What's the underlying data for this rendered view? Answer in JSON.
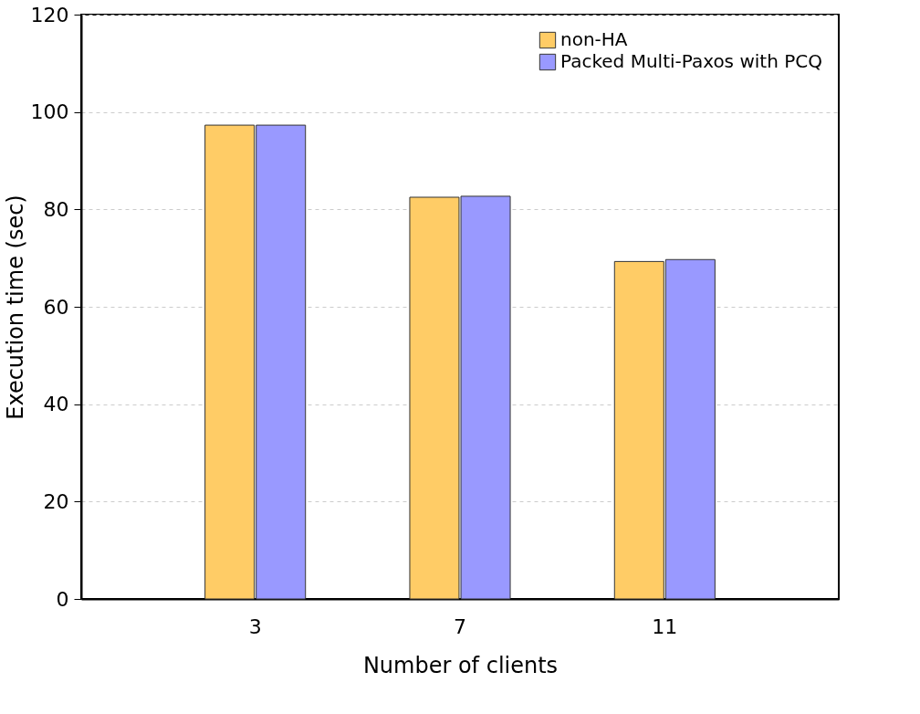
{
  "chart_data": {
    "type": "bar",
    "xlabel": "Number of clients",
    "ylabel": "Execution time (sec)",
    "categories": [
      "3",
      "7",
      "11"
    ],
    "series": [
      {
        "name": "non-HA",
        "color": "#ffcc66",
        "values": [
          97.3,
          82.5,
          69.3
        ]
      },
      {
        "name": "Packed Multi-Paxos with PCQ",
        "color": "#9999ff",
        "values": [
          97.3,
          82.7,
          69.7
        ]
      }
    ],
    "ylim": [
      0,
      120
    ],
    "yticks": [
      0,
      20,
      40,
      60,
      80,
      100,
      120
    ],
    "grid": "y",
    "legend": "top right"
  }
}
